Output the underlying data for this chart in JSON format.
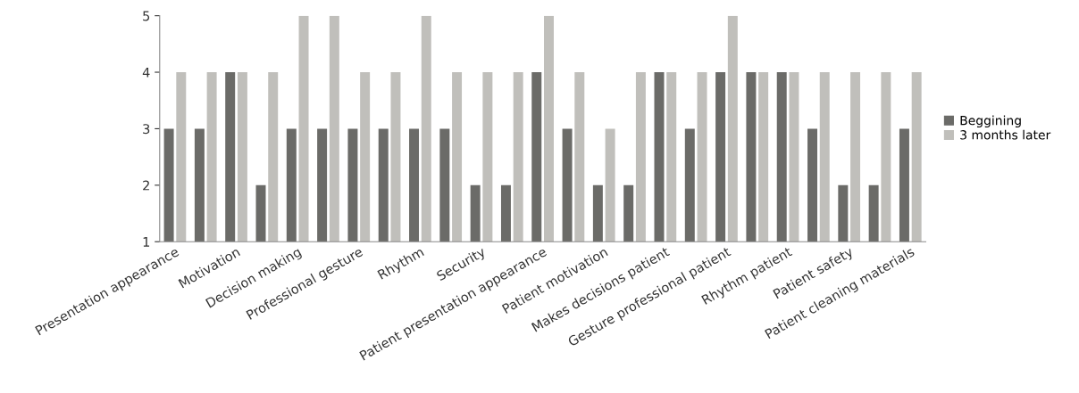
{
  "chart_data": {
    "type": "bar",
    "categories": [
      "Presentation appearance",
      null,
      "Motivation",
      null,
      "Decision making",
      null,
      "Professional gesture",
      null,
      "Rhythm",
      null,
      "Security",
      null,
      "Patient presentation appearance",
      null,
      "Patient motivation",
      null,
      "Makes decisions patient",
      null,
      "Gesture professional patient",
      null,
      "Rhythm patient",
      null,
      "Patient safety",
      null,
      "Patient cleaning materials"
    ],
    "series": [
      {
        "name": "Beggining",
        "color": "#6b6b68",
        "values": [
          3,
          3,
          4,
          2,
          3,
          3,
          3,
          3,
          3,
          3,
          2,
          2,
          4,
          3,
          2,
          2,
          4,
          3,
          4,
          4,
          4,
          3,
          2,
          2,
          3
        ]
      },
      {
        "name": "3 months later",
        "color": "#c0bfbb",
        "values": [
          4,
          4,
          4,
          4,
          5,
          5,
          4,
          4,
          5,
          4,
          4,
          4,
          5,
          4,
          3,
          4,
          4,
          4,
          5,
          4,
          4,
          4,
          4,
          4,
          4
        ]
      }
    ],
    "ylim": [
      1,
      5
    ],
    "yticks": [
      1,
      2,
      3,
      4,
      5
    ],
    "grid": false,
    "legend": "right"
  }
}
